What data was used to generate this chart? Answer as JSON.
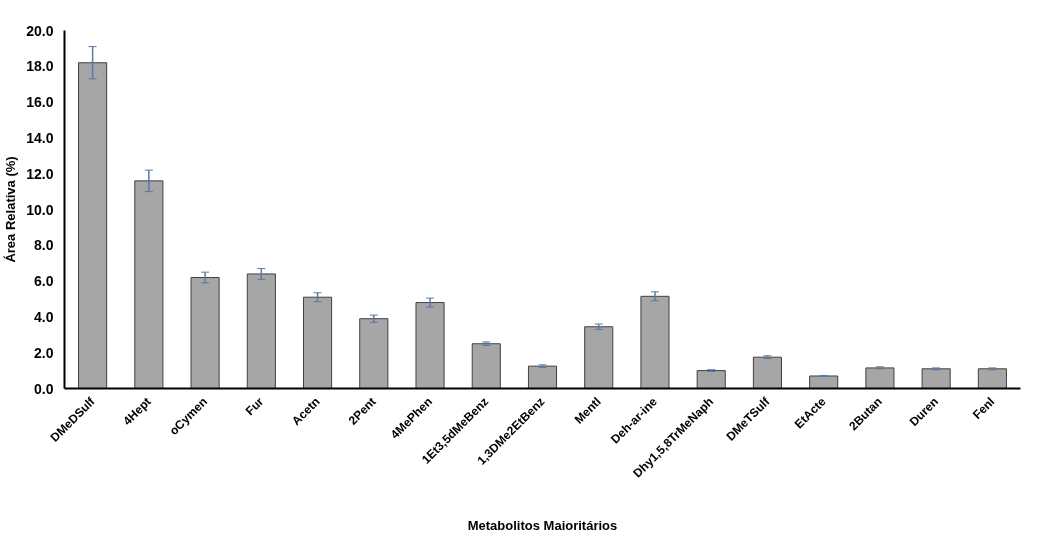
{
  "chart_data": {
    "type": "bar",
    "xlabel": "Metabolitos Maioritários",
    "ylabel": "Área Relativa (%)",
    "categories": [
      "DMeDSulf",
      "4Hept",
      "oCymen",
      "Fur",
      "Acetn",
      "2Pent",
      "4MePhen",
      "1Et3,5dMeBenz",
      "1,3DMe2EtBenz",
      "Mentl",
      "Deh-ar-ine",
      "Dhy1,5,8TrMeNaph",
      "DMeTSulf",
      "EtActe",
      "2Butan",
      "Duren",
      "Fenl"
    ],
    "values": [
      18.2,
      11.6,
      6.2,
      6.4,
      5.1,
      3.9,
      4.8,
      2.5,
      1.25,
      3.45,
      5.15,
      1.0,
      1.75,
      0.7,
      1.15,
      1.1,
      1.1
    ],
    "errors": [
      0.9,
      0.6,
      0.3,
      0.3,
      0.25,
      0.2,
      0.25,
      0.1,
      0.07,
      0.15,
      0.25,
      0.05,
      0.08,
      0.03,
      0.06,
      0.05,
      0.05
    ],
    "color": "#a6a6a6",
    "ylim": [
      0,
      20
    ],
    "yticks": [
      {
        "value": 0,
        "label": "0.0"
      },
      {
        "value": 2,
        "label": "2.0"
      },
      {
        "value": 4,
        "label": "4.0"
      },
      {
        "value": 6,
        "label": "6.0"
      },
      {
        "value": 8,
        "label": "8.0"
      },
      {
        "value": 10,
        "label": "10.0"
      },
      {
        "value": 12,
        "label": "12.0"
      },
      {
        "value": 14,
        "label": "14.0"
      },
      {
        "value": 16,
        "label": "16.0"
      },
      {
        "value": 18,
        "label": "18.0"
      },
      {
        "value": 20,
        "label": "20.0"
      }
    ],
    "grid": false
  }
}
